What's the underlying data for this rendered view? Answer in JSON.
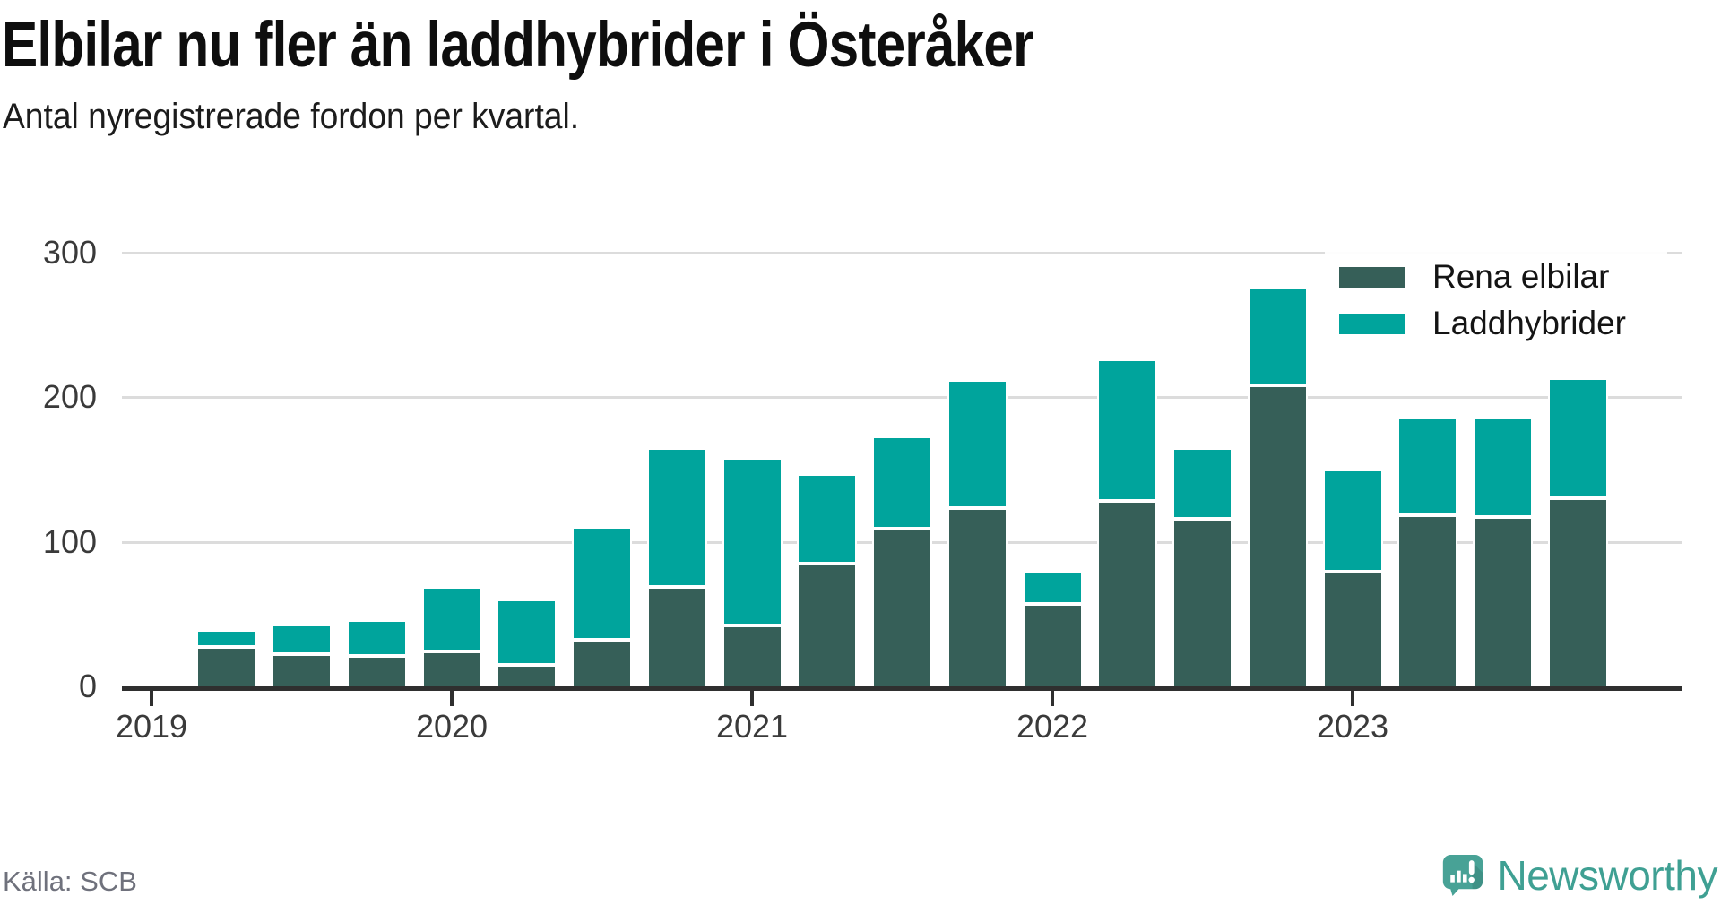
{
  "header": {
    "title": "Elbilar nu fler än laddhybrider i Österåker",
    "subtitle": "Antal nyregistrerade fordon per kvartal."
  },
  "footer": {
    "source": "Källa: SCB",
    "brand": "Newsworthy"
  },
  "colors": {
    "rena_elbilar": "#365f58",
    "laddhybrider": "#00a49c",
    "gridline": "#dcdcdc",
    "axis": "#2f2f2f",
    "axis_label": "#3a3a3a",
    "brand_teal": "#48a296"
  },
  "chart_data": {
    "type": "bar",
    "stacked": true,
    "title": "Elbilar nu fler än laddhybrider i Österåker",
    "subtitle": "Antal nyregistrerade fordon per kvartal.",
    "xlabel": "",
    "ylabel": "",
    "ylim": [
      0,
      300
    ],
    "yticks": [
      0,
      100,
      200,
      300
    ],
    "grid": "horizontal",
    "legend_position": "top-right",
    "x": [
      "2019-Q2",
      "2019-Q3",
      "2019-Q4",
      "2020-Q1",
      "2020-Q2",
      "2020-Q3",
      "2020-Q4",
      "2021-Q1",
      "2021-Q2",
      "2021-Q3",
      "2021-Q4",
      "2022-Q1",
      "2022-Q2",
      "2022-Q3",
      "2022-Q4",
      "2023-Q1",
      "2023-Q2",
      "2023-Q3",
      "2023-Q4"
    ],
    "xticks": [
      "2019",
      "2020",
      "2021",
      "2022",
      "2023"
    ],
    "series": [
      {
        "name": "Rena elbilar",
        "color": "#365f58",
        "values": [
          27,
          22,
          21,
          24,
          15,
          32,
          69,
          42,
          85,
          109,
          123,
          57,
          128,
          116,
          208,
          79,
          118,
          117,
          130
        ]
      },
      {
        "name": "Laddhybrider",
        "color": "#00a49c",
        "values": [
          12,
          21,
          25,
          45,
          45,
          78,
          96,
          116,
          62,
          64,
          89,
          22,
          98,
          49,
          68,
          71,
          68,
          69,
          83
        ]
      }
    ],
    "totals": [
      39,
      43,
      46,
      69,
      60,
      110,
      165,
      158,
      147,
      173,
      212,
      79,
      226,
      165,
      276,
      150,
      186,
      186,
      213
    ]
  }
}
